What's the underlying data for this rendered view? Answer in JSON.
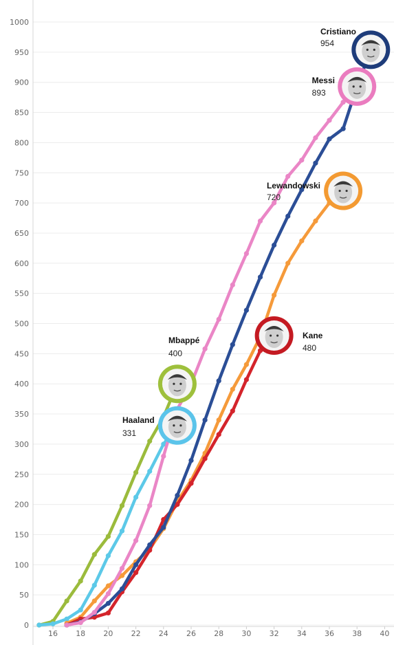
{
  "chart_data": {
    "type": "line",
    "title": "",
    "xlabel": "",
    "ylabel": "",
    "xlim": [
      14.5,
      40.5
    ],
    "ylim": [
      0,
      1000
    ],
    "x_ticks": [
      16,
      18,
      20,
      22,
      24,
      26,
      28,
      30,
      32,
      34,
      36,
      38,
      40
    ],
    "y_ticks": [
      0,
      50,
      100,
      150,
      200,
      250,
      300,
      350,
      400,
      450,
      500,
      550,
      600,
      650,
      700,
      750,
      800,
      850,
      900,
      950,
      1000
    ],
    "grid": "horizontal",
    "legend": "none",
    "series": [
      {
        "name": "Cristiano",
        "label_value": "954",
        "color": "#2b4e96",
        "ring": "#1e3c7a",
        "avatar_icon": "player-face-icon",
        "x": [
          17,
          18,
          19,
          20,
          21,
          22,
          23,
          24,
          25,
          26,
          27,
          28,
          29,
          30,
          31,
          32,
          33,
          34,
          35,
          36,
          37,
          38,
          39
        ],
        "y": [
          0,
          5,
          19,
          36,
          60,
          100,
          133,
          162,
          215,
          273,
          340,
          405,
          465,
          522,
          577,
          630,
          678,
          722,
          766,
          806,
          823,
          893,
          954
        ]
      },
      {
        "name": "Messi",
        "label_value": "893",
        "color": "#ea86c6",
        "ring": "#ea7cbf",
        "avatar_icon": "player-face-icon",
        "x": [
          17,
          18,
          19,
          20,
          21,
          22,
          23,
          24,
          25,
          26,
          27,
          28,
          29,
          30,
          31,
          32,
          33,
          34,
          35,
          36,
          37,
          38
        ],
        "y": [
          0,
          4,
          21,
          52,
          94,
          140,
          198,
          280,
          358,
          400,
          458,
          507,
          564,
          616,
          670,
          700,
          744,
          771,
          808,
          837,
          867,
          893
        ]
      },
      {
        "name": "Lewandowski",
        "label_value": "720",
        "color": "#f59a3a",
        "ring": "#f39a32",
        "avatar_icon": "player-face-icon",
        "x": [
          17,
          18,
          19,
          20,
          21,
          22,
          23,
          24,
          25,
          26,
          27,
          28,
          29,
          30,
          31,
          32,
          33,
          34,
          35,
          36,
          37
        ],
        "y": [
          3,
          13,
          40,
          65,
          82,
          105,
          126,
          160,
          205,
          240,
          285,
          340,
          391,
          432,
          478,
          547,
          600,
          637,
          670,
          700,
          720
        ]
      },
      {
        "name": "Kane",
        "label_value": "480",
        "color": "#d4242b",
        "ring": "#c41a22",
        "avatar_icon": "player-face-icon",
        "x": [
          17,
          18,
          19,
          20,
          21,
          22,
          23,
          24,
          25,
          26,
          27,
          28,
          29,
          30,
          31,
          32
        ],
        "y": [
          0,
          10,
          13,
          20,
          55,
          87,
          124,
          175,
          200,
          235,
          276,
          316,
          355,
          407,
          455,
          480
        ]
      },
      {
        "name": "Mbappé",
        "label_value": "400",
        "color": "#9bbb3c",
        "ring": "#9ec03c",
        "avatar_icon": "player-face-icon",
        "x": [
          15,
          16,
          17,
          18,
          19,
          20,
          21,
          22,
          23,
          24,
          25
        ],
        "y": [
          0,
          6,
          40,
          73,
          117,
          147,
          198,
          253,
          305,
          345,
          400
        ]
      },
      {
        "name": "Haaland",
        "label_value": "331",
        "color": "#5cc9e8",
        "ring": "#5bc4ea",
        "avatar_icon": "player-face-icon",
        "x": [
          15,
          16,
          17,
          18,
          19,
          20,
          21,
          22,
          23,
          24,
          25
        ],
        "y": [
          0,
          2,
          10,
          25,
          66,
          115,
          156,
          212,
          255,
          300,
          331
        ]
      }
    ]
  }
}
